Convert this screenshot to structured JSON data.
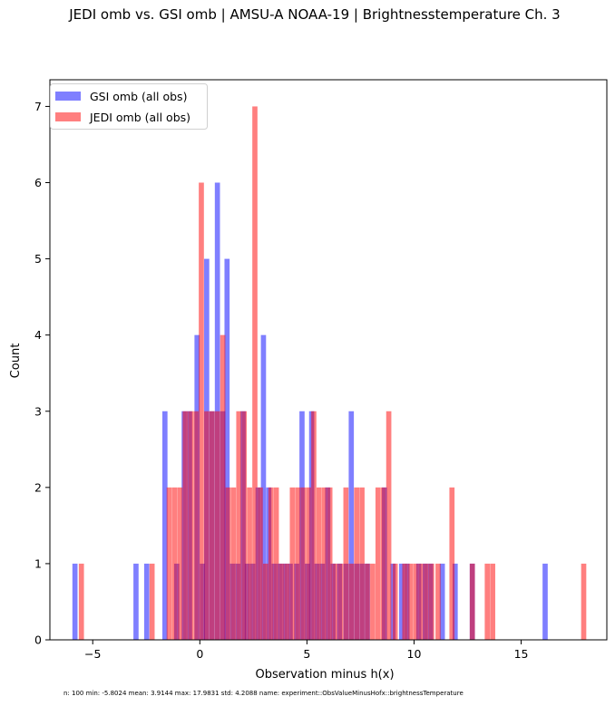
{
  "chart_data": {
    "type": "bar",
    "title": "JEDI omb vs. GSI omb | AMSU-A NOAA-19 | Brightnesstemperature Ch. 3",
    "xlabel": "Observation minus h(x)",
    "ylabel": "Count",
    "xlim": [
      -7.0,
      19.0
    ],
    "ylim": [
      0,
      7.35
    ],
    "xticks": [
      -5,
      0,
      5,
      10,
      15
    ],
    "xtick_labels": [
      "−5",
      "0",
      "5",
      "10",
      "15"
    ],
    "yticks": [
      0,
      1,
      2,
      3,
      4,
      5,
      6,
      7
    ],
    "ytick_labels": [
      "0",
      "1",
      "2",
      "3",
      "4",
      "5",
      "6",
      "7"
    ],
    "bin_width": 0.24,
    "legend_position": "upper-left",
    "series": [
      {
        "name": "GSI omb (all obs)",
        "color": "#0000ff",
        "alpha": 0.5,
        "bins": [
          [
            -5.95,
            1
          ],
          [
            -3.1,
            1
          ],
          [
            -2.6,
            1
          ],
          [
            -1.75,
            3
          ],
          [
            -0.85,
            3
          ],
          [
            -0.25,
            4
          ],
          [
            0.2,
            5
          ],
          [
            0.7,
            6
          ],
          [
            1.15,
            5
          ],
          [
            2.85,
            4
          ],
          [
            4.65,
            3
          ],
          [
            5.1,
            3
          ],
          [
            6.95,
            3
          ],
          [
            8.5,
            2
          ],
          [
            10.4,
            1
          ],
          [
            11.8,
            1
          ],
          [
            12.6,
            1
          ],
          [
            16.0,
            1
          ],
          [
            -1.2,
            1
          ],
          [
            -0.6,
            3
          ],
          [
            0.45,
            3
          ],
          [
            0.95,
            3
          ],
          [
            1.4,
            1
          ],
          [
            1.65,
            1
          ],
          [
            1.9,
            3
          ],
          [
            2.1,
            1
          ],
          [
            2.35,
            1
          ],
          [
            2.6,
            2
          ],
          [
            3.1,
            2
          ],
          [
            3.35,
            1
          ],
          [
            3.6,
            1
          ],
          [
            3.85,
            1
          ],
          [
            4.1,
            1
          ],
          [
            4.4,
            1
          ],
          [
            4.9,
            1
          ],
          [
            5.35,
            1
          ],
          [
            5.6,
            1
          ],
          [
            5.85,
            2
          ],
          [
            6.1,
            1
          ],
          [
            6.4,
            1
          ],
          [
            6.7,
            1
          ],
          [
            7.2,
            1
          ],
          [
            7.45,
            1
          ],
          [
            7.7,
            1
          ],
          [
            8.9,
            1
          ],
          [
            9.3,
            1
          ],
          [
            9.55,
            1
          ],
          [
            10.1,
            1
          ],
          [
            10.65,
            1
          ],
          [
            11.2,
            1
          ],
          [
            0.0,
            1
          ]
        ]
      },
      {
        "name": "JEDI omb (all obs)",
        "color": "#ff0000",
        "alpha": 0.5,
        "bins": [
          [
            -5.65,
            1
          ],
          [
            -2.35,
            1
          ],
          [
            -1.55,
            2
          ],
          [
            -1.3,
            2
          ],
          [
            -1.05,
            2
          ],
          [
            -0.8,
            3
          ],
          [
            -0.55,
            3
          ],
          [
            -0.3,
            3
          ],
          [
            -0.05,
            6
          ],
          [
            0.2,
            3
          ],
          [
            0.45,
            3
          ],
          [
            0.7,
            3
          ],
          [
            0.95,
            4
          ],
          [
            1.2,
            2
          ],
          [
            1.45,
            2
          ],
          [
            1.7,
            3
          ],
          [
            1.95,
            3
          ],
          [
            2.2,
            2
          ],
          [
            2.45,
            7
          ],
          [
            2.7,
            2
          ],
          [
            2.95,
            1
          ],
          [
            3.2,
            2
          ],
          [
            3.45,
            2
          ],
          [
            3.7,
            1
          ],
          [
            3.95,
            1
          ],
          [
            4.2,
            2
          ],
          [
            4.45,
            2
          ],
          [
            4.7,
            2
          ],
          [
            4.95,
            2
          ],
          [
            5.2,
            3
          ],
          [
            5.45,
            2
          ],
          [
            5.7,
            2
          ],
          [
            5.95,
            2
          ],
          [
            6.2,
            1
          ],
          [
            6.45,
            1
          ],
          [
            6.7,
            2
          ],
          [
            6.95,
            1
          ],
          [
            7.2,
            2
          ],
          [
            7.45,
            2
          ],
          [
            7.7,
            1
          ],
          [
            7.95,
            1
          ],
          [
            8.2,
            2
          ],
          [
            8.45,
            2
          ],
          [
            8.7,
            3
          ],
          [
            9.0,
            1
          ],
          [
            9.45,
            1
          ],
          [
            9.7,
            1
          ],
          [
            9.95,
            1
          ],
          [
            10.2,
            1
          ],
          [
            10.45,
            1
          ],
          [
            10.7,
            1
          ],
          [
            11.0,
            1
          ],
          [
            11.65,
            2
          ],
          [
            12.6,
            1
          ],
          [
            13.3,
            1
          ],
          [
            13.55,
            1
          ],
          [
            17.8,
            1
          ]
        ]
      }
    ]
  },
  "stats_line": "n: 100     min: -5.8024     mean: 3.9144     max: 17.9831     std: 4.2088     name: experiment::ObsValueMinusHofx::brightnessTemperature"
}
